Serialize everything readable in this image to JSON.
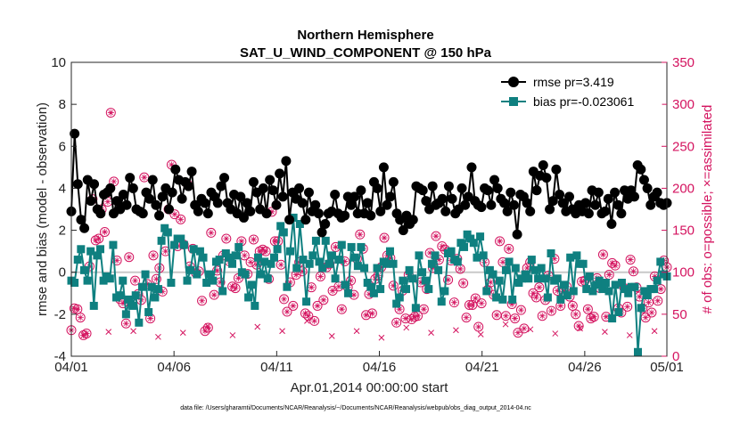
{
  "chart_data": {
    "type": "line",
    "title": "Northern Hemisphere",
    "subtitle": "SAT_U_WIND_COMPONENT @ 150 hPa",
    "xlabel": "Apr.01,2014 00:00:00 start",
    "ylabel": "rmse and bias (model - observation)",
    "y2label": "# of obs: o=possible; ×=assimilated",
    "xlim": [
      0,
      29
    ],
    "ylim": [
      -4,
      10
    ],
    "y2lim": [
      0,
      350
    ],
    "x_ticks": [
      0,
      5,
      10,
      15,
      20,
      25,
      29
    ],
    "x_tick_labels": [
      "04/01",
      "04/06",
      "04/11",
      "04/16",
      "04/21",
      "04/26",
      "05/01"
    ],
    "y_ticks": [
      -4,
      -2,
      0,
      2,
      4,
      6,
      8,
      10
    ],
    "y_tick_labels": [
      "-4",
      "-2",
      "0",
      "2",
      "4",
      "6",
      "8",
      "10"
    ],
    "y2_ticks": [
      0,
      50,
      100,
      150,
      200,
      250,
      300,
      350
    ],
    "y2_tick_labels": [
      "0",
      "50",
      "100",
      "150",
      "200",
      "250",
      "300",
      "350"
    ],
    "legend_position": "top-right",
    "series": [
      {
        "name": "rmse pr=3.419",
        "color": "#000000",
        "marker": "circle",
        "axis": "left",
        "values": [
          2.9,
          6.6,
          4.2,
          2.5,
          2.1,
          4.4,
          3.4,
          4.2,
          3.0,
          2.8,
          3.7,
          3.8,
          4.0,
          2.8,
          3.4,
          3.0,
          3.7,
          3.2,
          4.5,
          4.0,
          3.0,
          2.9,
          2.8,
          3.8,
          3.5,
          4.4,
          3.2,
          2.7,
          3.6,
          4.0,
          3.0,
          3.8,
          4.9,
          4.4,
          3.5,
          4.3,
          4.1,
          4.8,
          3.2,
          2.9,
          3.5,
          3.3,
          2.8,
          3.8,
          3.6,
          3.3,
          4.1,
          4.5,
          3.3,
          3.0,
          3.7,
          2.8,
          3.6,
          2.6,
          3.3,
          2.9,
          4.3,
          3.8,
          3.0,
          4.0,
          2.8,
          4.4,
          3.9,
          3.2,
          4.7,
          3.6,
          5.3,
          2.5,
          3.8,
          3.5,
          4.0,
          3.3,
          2.5,
          3.8,
          2.9,
          3.2,
          2.8,
          1.9,
          2.3,
          2.8,
          2.9,
          3.7,
          2.8,
          2.6,
          2.7,
          3.6,
          3.2,
          3.6,
          2.8,
          3.9,
          2.8,
          3.3,
          2.7,
          4.3,
          4.0,
          2.9,
          5.0,
          3.2,
          3.6,
          4.3,
          2.8,
          2.5,
          2.0,
          2.7,
          2.3,
          2.5,
          4.1,
          4.0,
          3.9,
          3.4,
          3.0,
          4.1,
          3.2,
          3.3,
          3.5,
          2.9,
          4.1,
          3.5,
          2.8,
          3.0,
          4.0,
          3.2,
          3.6,
          5.0,
          3.4,
          3.2,
          3.1,
          4.0,
          3.9,
          3.2,
          4.4,
          4.0,
          3.5,
          3.3,
          2.9,
          3.8,
          3.2,
          1.8,
          3.7,
          3.6,
          3.3,
          2.9,
          4.8,
          3.9,
          4.6,
          5.1,
          4.5,
          3.0,
          3.4,
          4.9,
          3.7,
          3.3,
          2.9,
          3.6,
          3.0,
          2.8,
          3.2,
          2.9,
          3.3,
          2.8,
          3.9,
          3.2,
          3.8,
          2.8,
          2.9,
          3.5,
          2.3,
          3.8,
          3.2,
          2.8,
          3.9,
          3.5,
          3.9,
          3.6,
          5.1,
          4.9,
          4.4,
          4.0,
          3.2,
          3.6,
          3.8,
          3.3,
          3.2,
          3.3
        ]
      },
      {
        "name": "bias pr=-0.023061",
        "color": "#0f8080",
        "marker": "square",
        "axis": "left",
        "values": [
          -0.4,
          -0.5,
          0.6,
          1.1,
          0.1,
          -0.4,
          1.0,
          -1.6,
          0.8,
          1.1,
          -0.4,
          -0.2,
          -0.3,
          1.3,
          -1.2,
          -1.1,
          -0.4,
          -2.0,
          -1.3,
          -1.6,
          -1.1,
          -2.4,
          -0.7,
          -0.1,
          -1.9,
          -0.7,
          -1.2,
          -0.8,
          1.5,
          2.1,
          1.9,
          -0.5,
          1.3,
          1.6,
          1.6,
          1.3,
          -0.4,
          0.1,
          1.1,
          -0.1,
          1.0,
          0.7,
          -0.5,
          -0.1,
          -0.4,
          0.5,
          0.6,
          -0.9,
          0.9,
          0.7,
          0.4,
          0.8,
          1.2,
          0.0,
          -0.1,
          -1.2,
          -0.6,
          -1.6,
          0.7,
          -0.1,
          0.5,
          -0.3,
          0.4,
          0.7,
          1.1,
          2.2,
          1.9,
          -0.7,
          1.0,
          2.6,
          0.2,
          2.3,
          0.6,
          -1.4,
          0.4,
          0.8,
          1.5,
          0.5,
          0.2,
          1.5,
          0.4,
          0.8,
          -0.3,
          0.6,
          1.3,
          -0.6,
          -1.0,
          1.2,
          0.7,
          0.3,
          1.2,
          0.2,
          -0.5,
          -0.7,
          -1.0,
          0.2,
          -0.8,
          0.5,
          0.4,
          1.0,
          0.4,
          -1.5,
          -1.2,
          -0.4,
          -0.8,
          0.1,
          -0.3,
          -1.7,
          0.8,
          0.0,
          -0.4,
          -0.8,
          0.4,
          0.8,
          0.1,
          -1.4,
          -0.9,
          0.9,
          1.0,
          0.6,
          0.5,
          1.4,
          1.2,
          1.8,
          1.6,
          1.4,
          0.7,
          1.7,
          0.8,
          -0.9,
          0.1,
          -0.1,
          -1.2,
          -0.4,
          -1.3,
          0.1,
          0.5,
          -1.3,
          0.2,
          -0.5,
          -0.3,
          -0.1,
          -0.3,
          0.6,
          0.1,
          -0.3,
          0.2,
          -0.3,
          -1.2,
          0.9,
          -0.4,
          -0.3,
          -1.3,
          -0.6,
          -1.1,
          0.7,
          -0.9,
          0.8,
          0.4,
          0.4,
          -0.8,
          -0.2,
          -0.9,
          -0.6,
          -0.4,
          -0.8,
          -0.5,
          -0.9,
          -2.2,
          -0.6,
          -1.9,
          -0.5,
          -0.8,
          -1.0,
          -0.7,
          -0.7,
          -3.8,
          -1.7,
          -0.9,
          -1.1,
          -0.8,
          -0.8,
          -0.4,
          0.5,
          -0.1,
          -0.2
        ]
      },
      {
        "name": "possible",
        "color": "#d4135f",
        "marker": "open-circle",
        "axis": "right",
        "values": [
          31,
          57,
          56,
          46,
          25,
          27,
          107,
          187,
          138,
          140,
          175,
          148,
          184,
          290,
          208,
          114,
          68,
          63,
          39,
          118,
          64,
          90,
          74,
          67,
          213,
          86,
          45,
          120,
          92,
          105,
          77,
          125,
          175,
          228,
          169,
          131,
          163,
          133,
          206,
          107,
          128,
          99,
          101,
          66,
          30,
          34,
          147,
          73,
          102,
          88,
          120,
          140,
          113,
          83,
          81,
          93,
          137,
          120,
          98,
          112,
          139,
          109,
          125,
          127,
          125,
          92,
          172,
          137,
          137,
          109,
          68,
          53,
          88,
          60,
          97,
          112,
          101,
          51,
          48,
          82,
          42,
          60,
          95,
          67,
          106,
          110,
          78,
          130,
          83,
          56,
          113,
          82,
          90,
          73,
          116,
          145,
          128,
          49,
          74,
          51,
          92,
          96,
          106,
          141,
          120,
          117,
          84,
          40,
          56,
          78,
          45,
          97,
          44,
          47,
          48,
          88,
          56,
          80,
          123,
          105,
          143,
          115,
          131,
          127,
          91,
          114,
          64,
          116,
          104,
          87,
          46,
          61,
          61,
          69,
          35,
          63,
          112,
          79,
          88,
          73,
          49,
          137,
          112,
          48,
          128,
          62,
          45,
          28,
          55,
          33,
          105,
          112,
          75,
          70,
          82,
          48,
          67,
          96,
          54,
          116,
          78,
          60,
          77,
          83,
          71,
          60,
          50,
          36,
          89,
          90,
          56,
          45,
          47,
          93,
          81,
          121,
          47,
          97,
          111,
          108,
          57,
          52,
          81,
          59,
          115,
          101,
          82,
          71,
          57,
          46,
          64,
          52,
          95,
          66,
          80,
          114,
          106
        ]
      },
      {
        "name": "assimilated",
        "color": "#d4135f",
        "marker": "x",
        "axis": "right",
        "values": [
          25,
          29,
          30,
          23,
          28,
          36,
          25,
          35,
          30,
          42,
          24,
          30,
          22,
          34,
          28,
          31,
          26,
          38,
          32,
          27,
          33,
          29,
          25,
          30
        ]
      }
    ],
    "footer": "data file: /Users/gharamti/Documents/NCAR/Reanalysis/~/Documents/NCAR/Reanalysis/webpub/obs_diag_output_2014-04.nc"
  }
}
